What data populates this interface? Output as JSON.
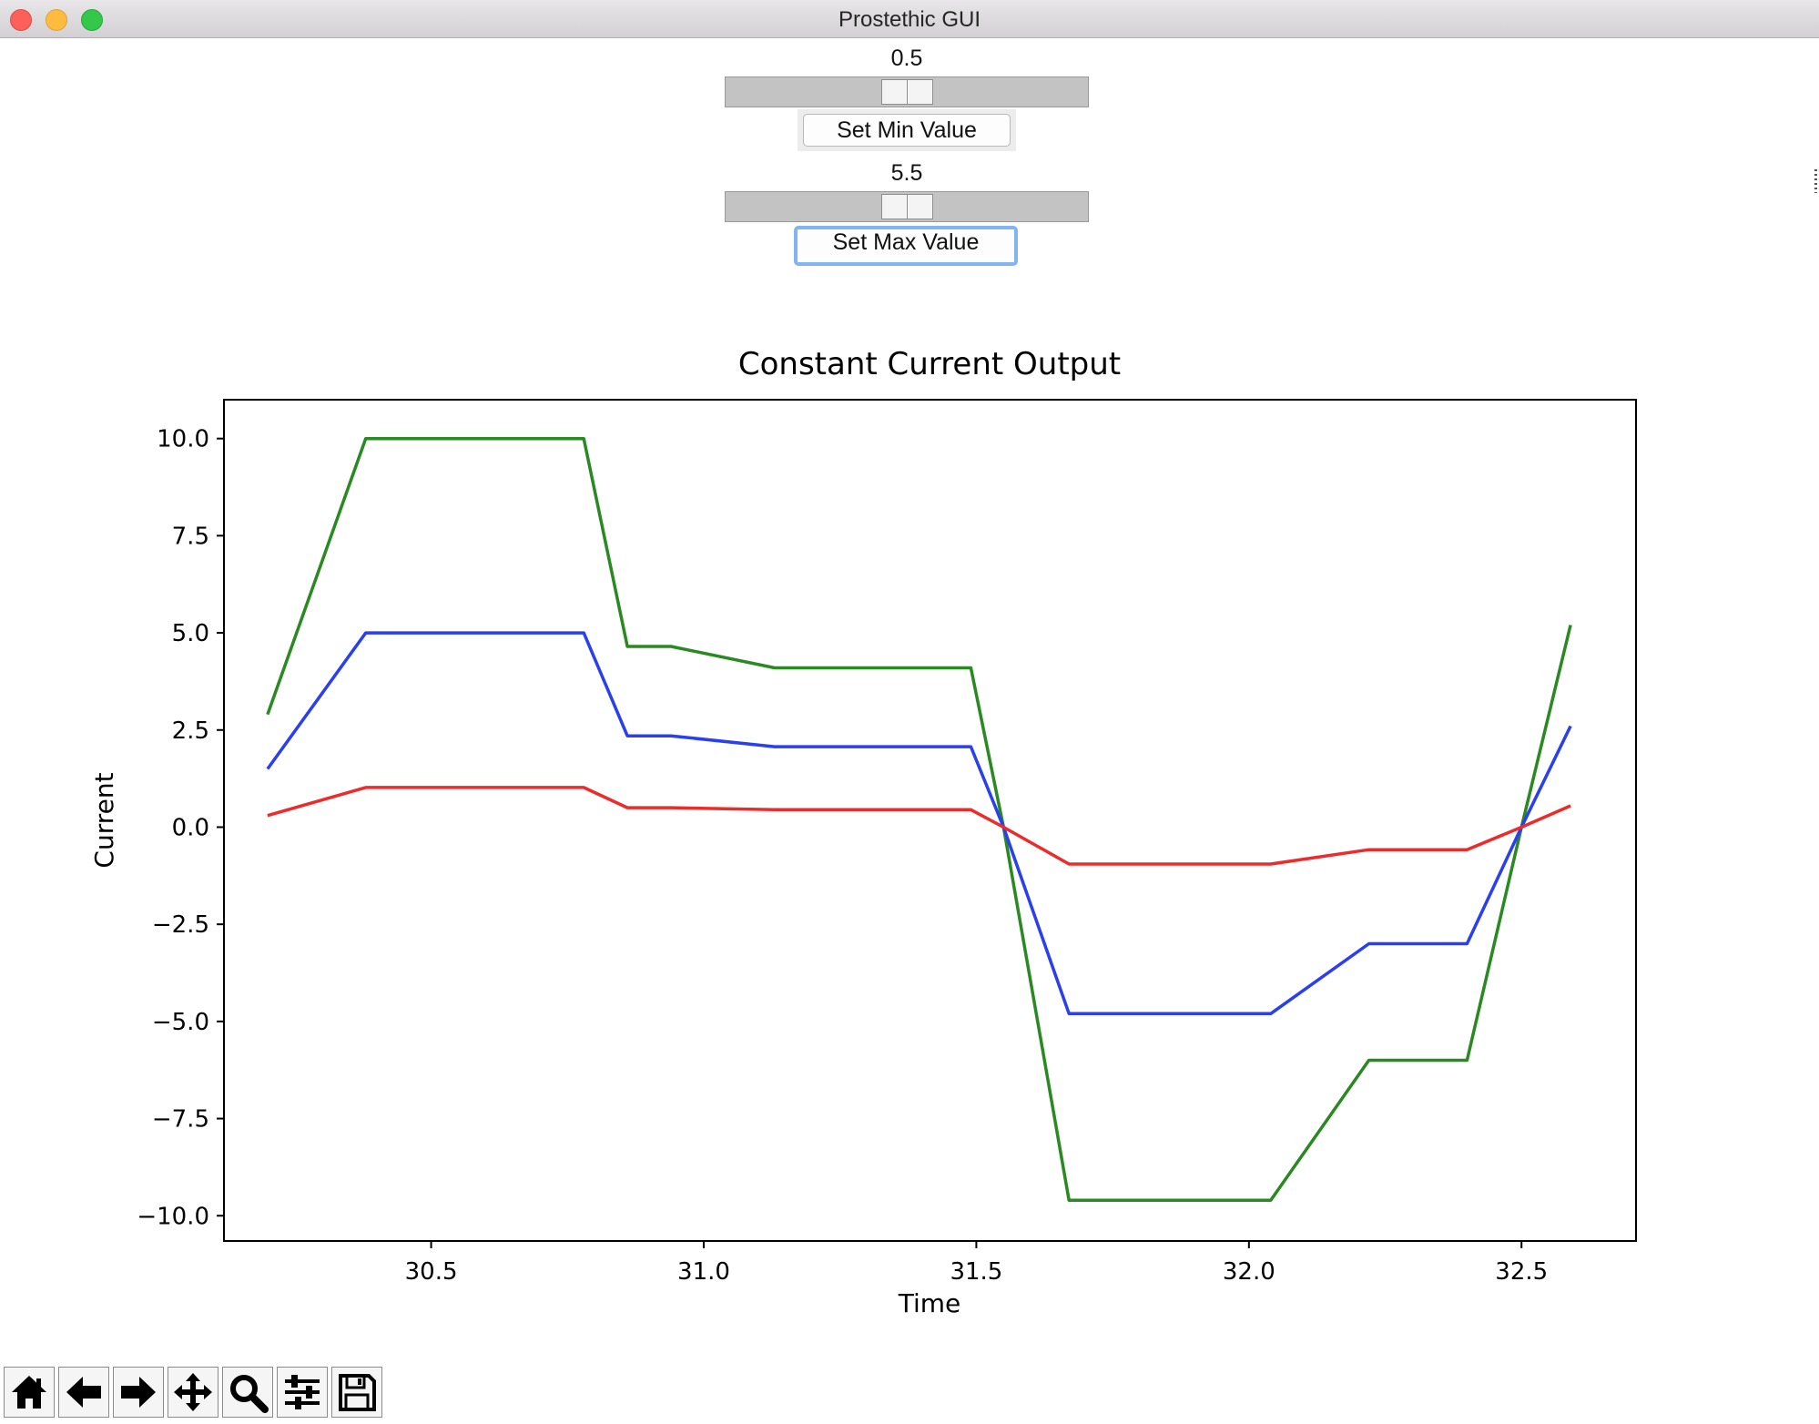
{
  "window": {
    "title": "Prostethic GUI"
  },
  "min_control": {
    "value_label": "0.5",
    "button_label": "Set Min Value",
    "slider_fraction": 0.5
  },
  "max_control": {
    "value_label": "5.5",
    "button_label": "Set Max Value",
    "slider_fraction": 0.5
  },
  "chart_data": {
    "type": "line",
    "title": "Constant Current Output",
    "xlabel": "Time",
    "ylabel": "Current",
    "xlim": [
      30.12,
      32.71
    ],
    "ylim": [
      -10.65,
      11.0
    ],
    "xticks": [
      30.5,
      31.0,
      31.5,
      32.0,
      32.5
    ],
    "xtick_labels": [
      "30.5",
      "31.0",
      "31.5",
      "32.0",
      "32.5"
    ],
    "yticks": [
      10.0,
      7.5,
      5.0,
      2.5,
      0.0,
      -2.5,
      -5.0,
      -7.5,
      -10.0
    ],
    "ytick_labels": [
      "10.0",
      "7.5",
      "5.0",
      "2.5",
      "0.0",
      "−2.5",
      "−5.0",
      "−7.5",
      "−10.0"
    ],
    "grid": false,
    "x": [
      30.2,
      30.38,
      30.78,
      30.86,
      30.94,
      31.13,
      31.49,
      31.55,
      31.67,
      32.04,
      32.22,
      32.4,
      32.5,
      32.59
    ],
    "series": [
      {
        "color": "#2a8a22",
        "values": [
          2.9,
          10.0,
          10.0,
          4.65,
          4.65,
          4.1,
          4.1,
          0.0,
          -9.6,
          -9.6,
          -6.0,
          -6.0,
          0.0,
          5.2
        ]
      },
      {
        "color": "#2a3ff0",
        "values": [
          1.5,
          5.0,
          5.0,
          2.35,
          2.35,
          2.07,
          2.07,
          0.0,
          -4.8,
          -4.8,
          -3.0,
          -3.0,
          0.0,
          2.6
        ]
      },
      {
        "color": "#ee2b2b",
        "values": [
          0.3,
          1.02,
          1.02,
          0.5,
          0.5,
          0.45,
          0.45,
          0.0,
          -0.95,
          -0.95,
          -0.58,
          -0.58,
          0.0,
          0.55
        ]
      }
    ]
  },
  "toolbar": {
    "buttons": [
      {
        "icon": "home-icon"
      },
      {
        "icon": "back-arrow-icon"
      },
      {
        "icon": "forward-arrow-icon"
      },
      {
        "icon": "pan-icon"
      },
      {
        "icon": "zoom-icon"
      },
      {
        "icon": "subplots-config-icon"
      },
      {
        "icon": "save-icon"
      }
    ]
  }
}
